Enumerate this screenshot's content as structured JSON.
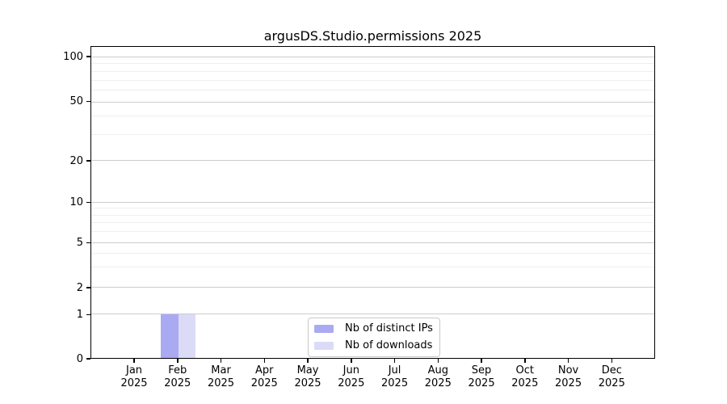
{
  "chart_data": {
    "type": "bar",
    "title": "argusDS.Studio.permissions 2025",
    "categories": [
      {
        "month": "Jan",
        "year": "2025"
      },
      {
        "month": "Feb",
        "year": "2025"
      },
      {
        "month": "Mar",
        "year": "2025"
      },
      {
        "month": "Apr",
        "year": "2025"
      },
      {
        "month": "May",
        "year": "2025"
      },
      {
        "month": "Jun",
        "year": "2025"
      },
      {
        "month": "Jul",
        "year": "2025"
      },
      {
        "month": "Aug",
        "year": "2025"
      },
      {
        "month": "Sep",
        "year": "2025"
      },
      {
        "month": "Oct",
        "year": "2025"
      },
      {
        "month": "Nov",
        "year": "2025"
      },
      {
        "month": "Dec",
        "year": "2025"
      }
    ],
    "series": [
      {
        "name": "Nb of distinct IPs",
        "color": "#aaaaf3",
        "values": [
          0,
          1,
          0,
          0,
          0,
          0,
          0,
          0,
          0,
          0,
          0,
          0
        ]
      },
      {
        "name": "Nb of downloads",
        "color": "#dbdbf8",
        "values": [
          0,
          1,
          0,
          0,
          0,
          0,
          0,
          0,
          0,
          0,
          0,
          0
        ]
      }
    ],
    "yscale": "symlog",
    "ylim": [
      0,
      115
    ],
    "yticks": [
      100,
      50,
      20,
      10,
      5,
      2,
      1,
      0
    ],
    "y_minor_gridlines": [
      90,
      80,
      70,
      60,
      40,
      30,
      9,
      8,
      7,
      6,
      4,
      3
    ],
    "grid": true,
    "legend_position": "lower center"
  }
}
